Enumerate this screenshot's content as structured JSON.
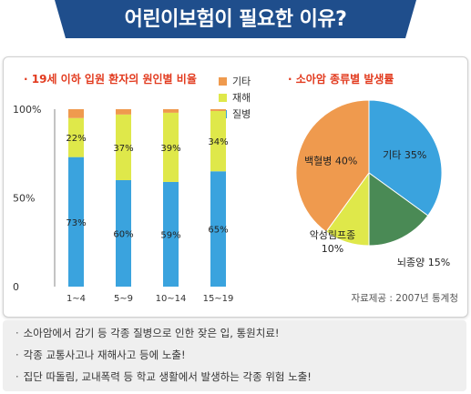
{
  "header": {
    "title": "어린이보험이 필요한 이유?"
  },
  "colors": {
    "banner": "#1f4e8c",
    "illness": "#3aa3de",
    "accident": "#dfe84a",
    "other": "#ef9a4e",
    "title_red": "#e23a1e",
    "brain": "#4a8a55"
  },
  "chart_data": [
    {
      "type": "bar",
      "title": "19세 이하 입원 환자의 원인별 비율",
      "categories": [
        "1~4",
        "5~9",
        "10~14",
        "15~19"
      ],
      "series": [
        {
          "name": "질병",
          "values": [
            73,
            60,
            59,
            65
          ]
        },
        {
          "name": "재해",
          "values": [
            22,
            37,
            39,
            34
          ]
        },
        {
          "name": "기타",
          "values": [
            5,
            3,
            2,
            1
          ]
        }
      ],
      "value_labels": {
        "질병": [
          "73%",
          "60%",
          "59%",
          "65%"
        ],
        "재해": [
          "22%",
          "37%",
          "39%",
          "34%"
        ]
      },
      "yticks": [
        "100%",
        "50%",
        "0"
      ],
      "ylim": [
        0,
        100
      ],
      "stacked": true,
      "legend_position": "top-right"
    },
    {
      "type": "pie",
      "title": "소아암 종류별 발생률",
      "slices": [
        {
          "label": "기타",
          "value": 35,
          "text": "기타 35%"
        },
        {
          "label": "뇌종양",
          "value": 15,
          "text": "뇌종양 15%"
        },
        {
          "label": "악성림프종",
          "value": 10,
          "text_lines": [
            "악성림프종",
            "10%"
          ]
        },
        {
          "label": "백혈병",
          "value": 40,
          "text": "백혈병 40%"
        }
      ]
    }
  ],
  "source_text": "자료제공 : 2007년 통계청",
  "bullets": [
    "소아암에서 감기 등 각종 질병으로 인한 잦은 입, 통원치료!",
    "각종 교통사고나 재해사고 등에 노출!",
    "집단 따돌림, 교내폭력 등 학교 생활에서 발생하는 각종 위험 노출!"
  ]
}
